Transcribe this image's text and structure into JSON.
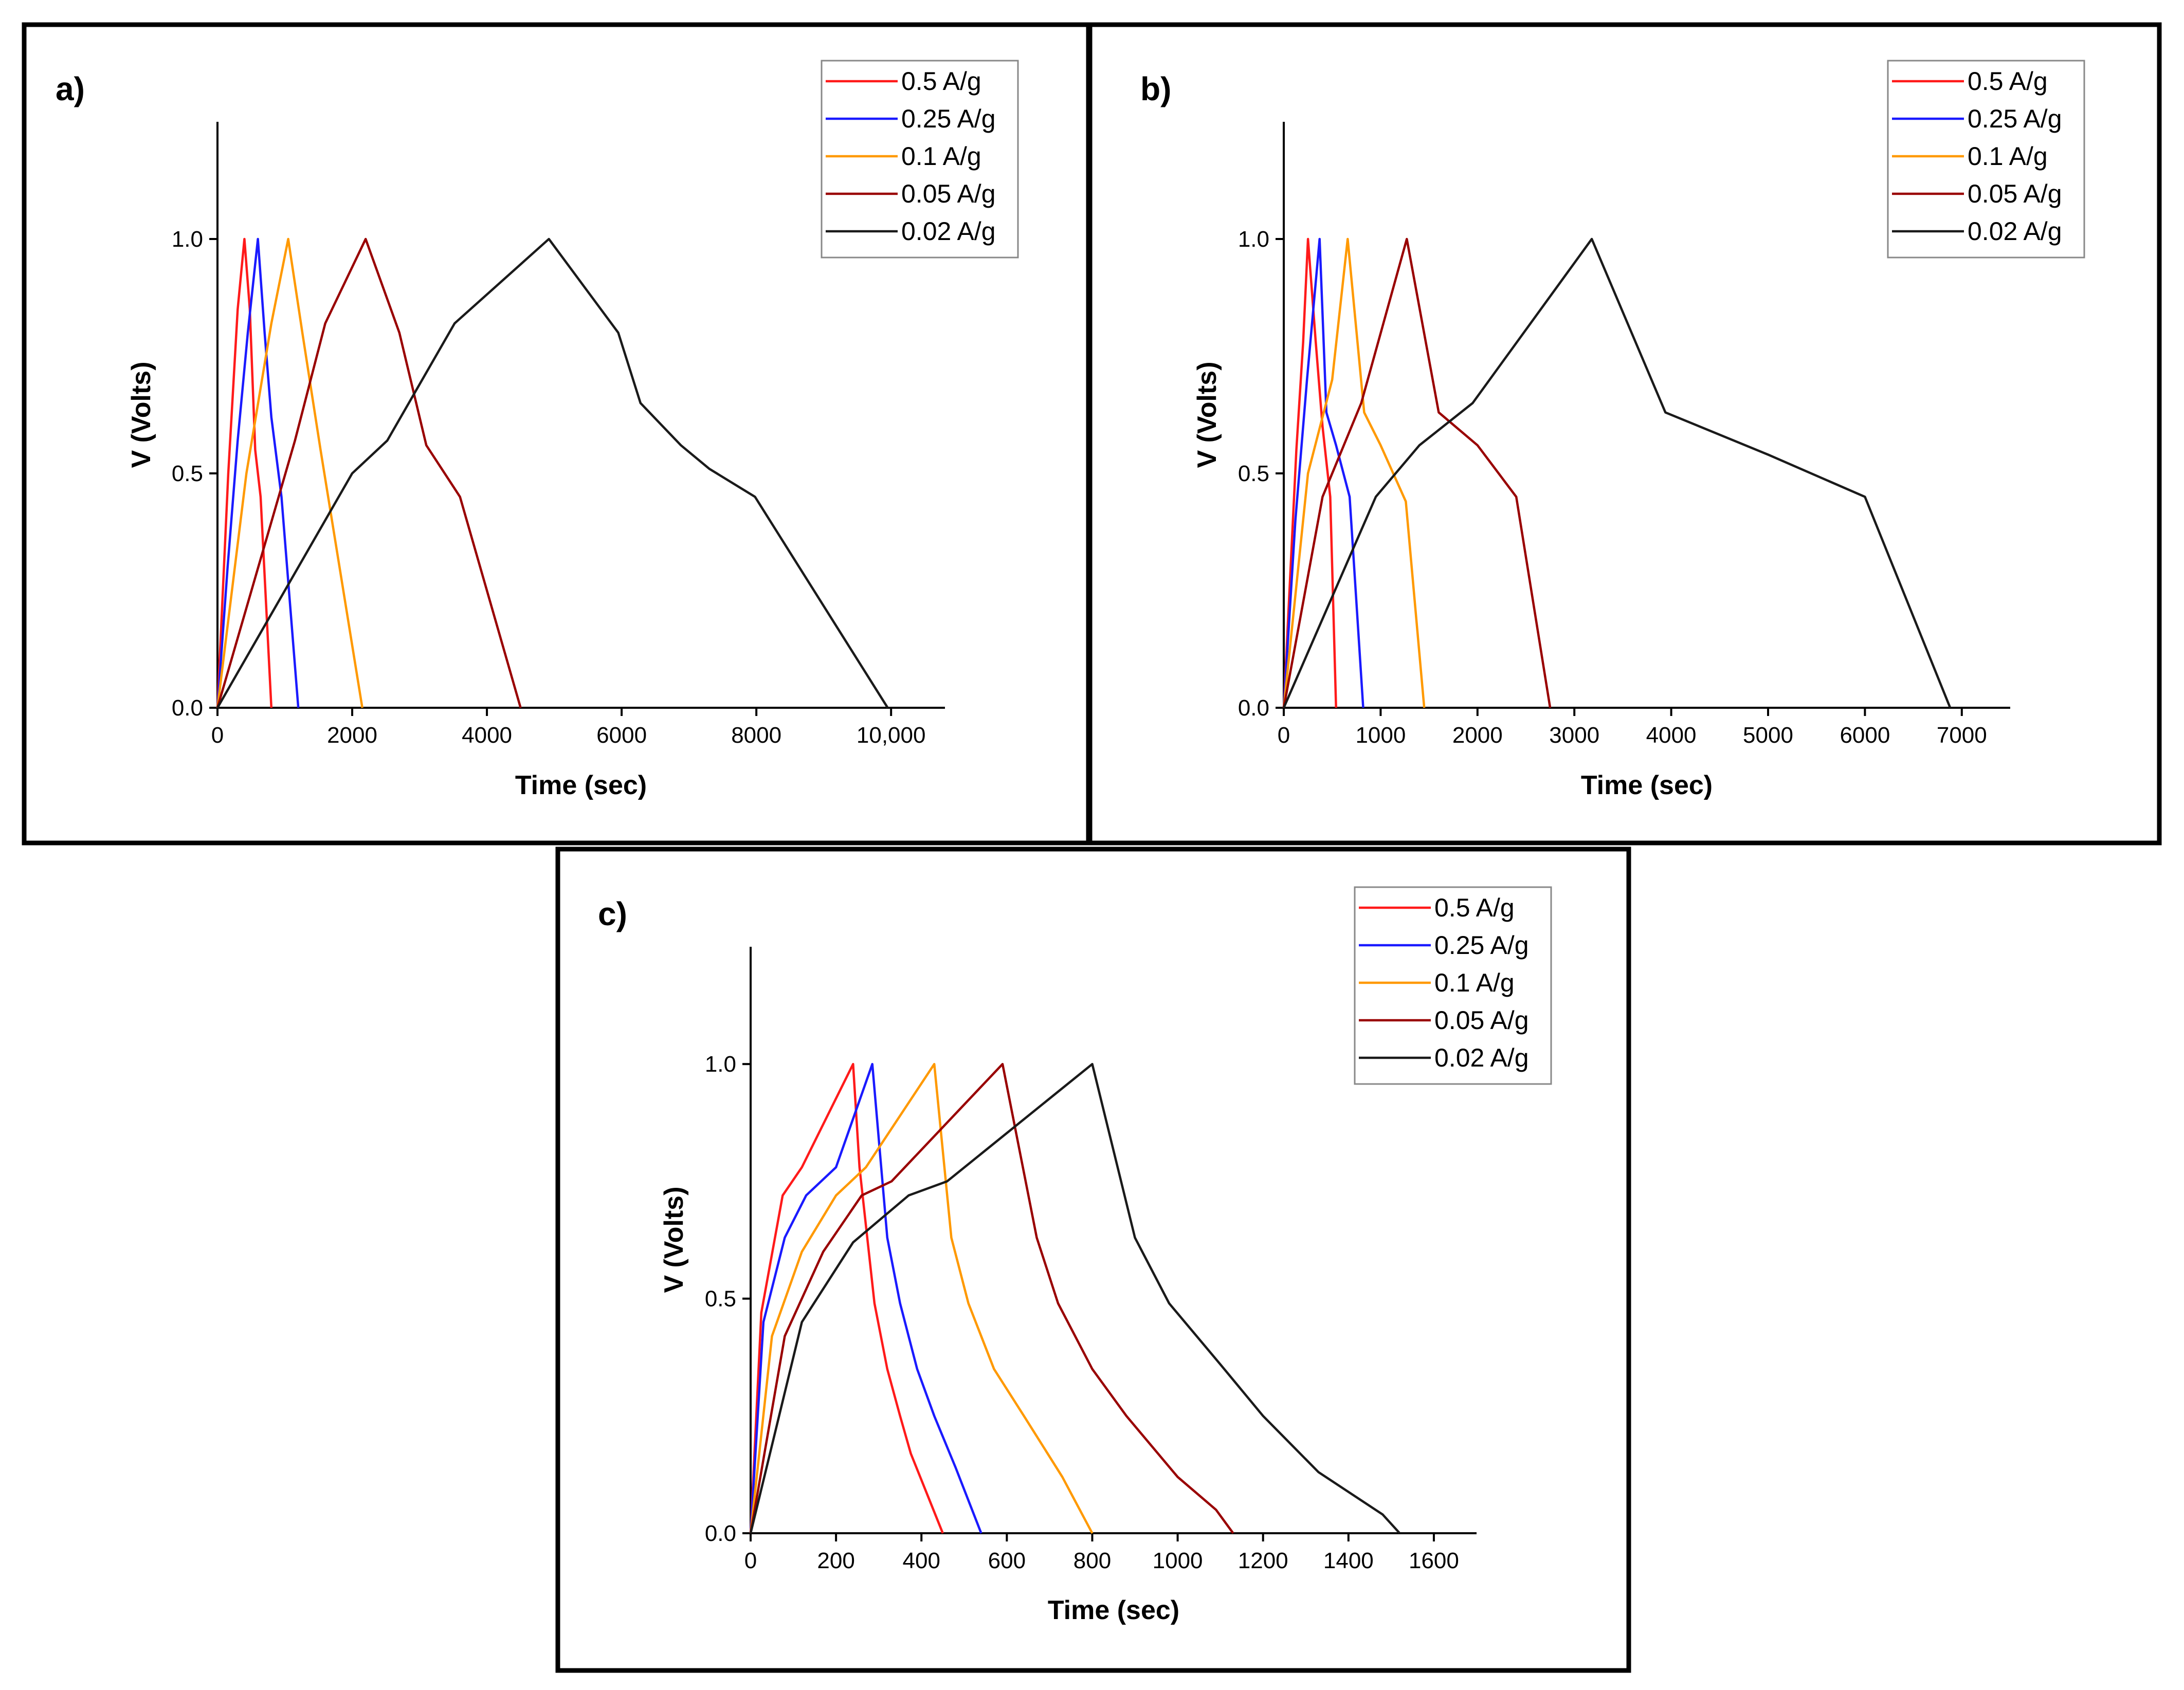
{
  "chart_data": [
    {
      "type": "line",
      "panel_label": "a)",
      "xlabel": "Time (sec)",
      "ylabel": "V (Volts)",
      "xlim": [
        0,
        10800
      ],
      "ylim": [
        0,
        1.25
      ],
      "xticks": [
        0,
        2000,
        4000,
        6000,
        8000,
        10000
      ],
      "xtick_labels": [
        "0",
        "2000",
        "4000",
        "6000",
        "8000",
        "10,000"
      ],
      "yticks": [
        0.0,
        0.5,
        1.0
      ],
      "ytick_labels": [
        "0.0",
        "0.5",
        "1.0"
      ],
      "legend_position": "top-right",
      "series": [
        {
          "name": "0.5 A/g",
          "color": "#ff1a1a",
          "x": [
            0,
            160,
            300,
            400,
            480,
            560,
            640,
            800
          ],
          "y": [
            0,
            0.5,
            0.85,
            1.0,
            0.85,
            0.55,
            0.45,
            0
          ]
        },
        {
          "name": "0.25 A/g",
          "color": "#1a1aff",
          "x": [
            0,
            150,
            300,
            450,
            600,
            700,
            800,
            950,
            1200
          ],
          "y": [
            0,
            0.3,
            0.57,
            0.8,
            1.0,
            0.8,
            0.62,
            0.45,
            0
          ]
        },
        {
          "name": "0.1 A/g",
          "color": "#ff9900",
          "x": [
            0,
            430,
            800,
            1050,
            1260,
            1530,
            2150
          ],
          "y": [
            0,
            0.5,
            0.82,
            1.0,
            0.8,
            0.55,
            0
          ]
        },
        {
          "name": "0.05 A/g",
          "color": "#990000",
          "x": [
            0,
            1150,
            1600,
            2200,
            2700,
            3100,
            3600,
            4500
          ],
          "y": [
            0,
            0.57,
            0.82,
            1.0,
            0.8,
            0.56,
            0.45,
            0
          ]
        },
        {
          "name": "0.02 A/g",
          "color": "#1a1a1a",
          "x": [
            0,
            2000,
            2520,
            3520,
            4920,
            5950,
            6280,
            6880,
            7300,
            7980,
            9950
          ],
          "y": [
            0,
            0.5,
            0.57,
            0.82,
            1.0,
            0.8,
            0.65,
            0.56,
            0.51,
            0.45,
            0
          ]
        }
      ]
    },
    {
      "type": "line",
      "panel_label": "b)",
      "xlabel": "Time (sec)",
      "ylabel": "V (Volts)",
      "xlim": [
        0,
        7500
      ],
      "ylim": [
        0,
        1.25
      ],
      "xticks": [
        0,
        1000,
        2000,
        3000,
        4000,
        5000,
        6000,
        7000
      ],
      "xtick_labels": [
        "0",
        "1000",
        "2000",
        "3000",
        "4000",
        "5000",
        "6000",
        "7000"
      ],
      "yticks": [
        0.0,
        0.5,
        1.0
      ],
      "ytick_labels": [
        "0.0",
        "0.5",
        "1.0"
      ],
      "legend_position": "top-right",
      "series": [
        {
          "name": "0.5 A/g",
          "color": "#ff1a1a",
          "x": [
            0,
            130,
            200,
            250,
            330,
            400,
            480,
            540
          ],
          "y": [
            0,
            0.55,
            0.78,
            1.0,
            0.78,
            0.6,
            0.45,
            0
          ]
        },
        {
          "name": "0.25 A/g",
          "color": "#1a1aff",
          "x": [
            0,
            120,
            240,
            370,
            440,
            540,
            680,
            820
          ],
          "y": [
            0,
            0.4,
            0.7,
            1.0,
            0.63,
            0.56,
            0.45,
            0
          ]
        },
        {
          "name": "0.1 A/g",
          "color": "#ff9900",
          "x": [
            0,
            250,
            500,
            660,
            830,
            1000,
            1260,
            1450
          ],
          "y": [
            0,
            0.5,
            0.7,
            1.0,
            0.63,
            0.56,
            0.44,
            0
          ]
        },
        {
          "name": "0.05 A/g",
          "color": "#990000",
          "x": [
            0,
            400,
            800,
            1270,
            1600,
            2000,
            2400,
            2750
          ],
          "y": [
            0,
            0.45,
            0.65,
            1.0,
            0.63,
            0.56,
            0.45,
            0
          ]
        },
        {
          "name": "0.02 A/g",
          "color": "#1a1a1a",
          "x": [
            0,
            950,
            1400,
            1950,
            3180,
            3940,
            5000,
            6000,
            6880
          ],
          "y": [
            0,
            0.45,
            0.56,
            0.65,
            1.0,
            0.63,
            0.54,
            0.45,
            0
          ]
        }
      ]
    },
    {
      "type": "line",
      "panel_label": "c)",
      "xlabel": "Time (sec)",
      "ylabel": "V (Volts)",
      "xlim": [
        0,
        1700
      ],
      "ylim": [
        0,
        1.25
      ],
      "xticks": [
        0,
        200,
        400,
        600,
        800,
        1000,
        1200,
        1400,
        1600
      ],
      "xtick_labels": [
        "0",
        "200",
        "400",
        "600",
        "800",
        "1000",
        "1200",
        "1400",
        "1600"
      ],
      "yticks": [
        0.0,
        0.5,
        1.0
      ],
      "ytick_labels": [
        "0.0",
        "0.5",
        "1.0"
      ],
      "legend_position": "top-right",
      "series": [
        {
          "name": "0.5 A/g",
          "color": "#ff1a1a",
          "x": [
            0,
            25,
            75,
            120,
            240,
            255,
            290,
            320,
            350,
            375,
            450
          ],
          "y": [
            0,
            0.47,
            0.72,
            0.78,
            1.0,
            0.78,
            0.49,
            0.35,
            0.25,
            0.17,
            0
          ]
        },
        {
          "name": "0.25 A/g",
          "color": "#1a1aff",
          "x": [
            0,
            30,
            80,
            130,
            200,
            285,
            320,
            350,
            390,
            430,
            480,
            540
          ],
          "y": [
            0,
            0.45,
            0.63,
            0.72,
            0.78,
            1.0,
            0.63,
            0.49,
            0.35,
            0.25,
            0.14,
            0
          ]
        },
        {
          "name": "0.1 A/g",
          "color": "#ff9900",
          "x": [
            0,
            50,
            120,
            200,
            270,
            430,
            470,
            510,
            570,
            640,
            730,
            800
          ],
          "y": [
            0,
            0.42,
            0.6,
            0.72,
            0.78,
            1.0,
            0.63,
            0.49,
            0.35,
            0.25,
            0.12,
            0
          ]
        },
        {
          "name": "0.05 A/g",
          "color": "#990000",
          "x": [
            0,
            80,
            170,
            260,
            330,
            590,
            670,
            720,
            800,
            880,
            1000,
            1090,
            1130
          ],
          "y": [
            0,
            0.42,
            0.6,
            0.72,
            0.75,
            1.0,
            0.63,
            0.49,
            0.35,
            0.25,
            0.12,
            0.05,
            0
          ]
        },
        {
          "name": "0.02 A/g",
          "color": "#1a1a1a",
          "x": [
            0,
            120,
            240,
            370,
            460,
            800,
            900,
            980,
            1100,
            1200,
            1330,
            1480,
            1520
          ],
          "y": [
            0,
            0.45,
            0.62,
            0.72,
            0.75,
            1.0,
            0.63,
            0.49,
            0.36,
            0.25,
            0.13,
            0.04,
            0
          ]
        }
      ]
    }
  ]
}
